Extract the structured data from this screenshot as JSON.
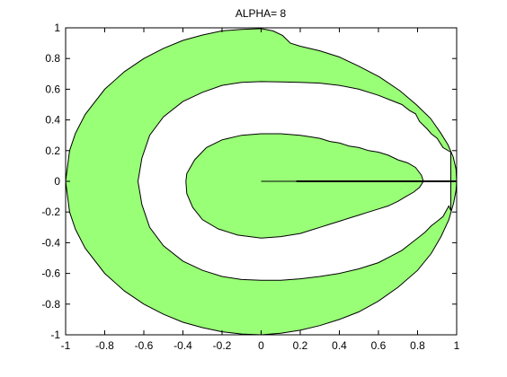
{
  "chart_data": {
    "type": "area",
    "title": "ALPHA= 8",
    "xlabel": "",
    "ylabel": "",
    "xlim": [
      -1,
      1
    ],
    "ylim": [
      -1,
      1
    ],
    "xticks": [
      -1,
      -0.8,
      -0.6,
      -0.4,
      -0.2,
      0,
      0.2,
      0.4,
      0.6,
      0.8,
      1
    ],
    "yticks": [
      -1,
      -0.8,
      -0.6,
      -0.4,
      -0.2,
      0,
      0.2,
      0.4,
      0.6,
      0.8,
      1
    ],
    "xtick_labels": [
      "-1",
      "-0.8",
      "-0.6",
      "-0.4",
      "-0.2",
      "0",
      "0.2",
      "0.4",
      "0.6",
      "0.8",
      "1"
    ],
    "ytick_labels": [
      "-1",
      "-0.8",
      "-0.6",
      "-0.4",
      "-0.2",
      "0",
      "0.2",
      "0.4",
      "0.6",
      "0.8",
      "1"
    ],
    "grid": false,
    "fill_color": "#99ff77",
    "edge_color": "#000000",
    "regions": [
      {
        "name": "",
        "role": "outer-boundary",
        "points": [
          [
            1.0,
            0.0
          ],
          [
            0.997,
            0.08
          ],
          [
            0.982,
            0.16
          ],
          [
            0.955,
            0.24
          ],
          [
            0.916,
            0.32
          ],
          [
            0.866,
            0.41
          ],
          [
            0.793,
            0.5
          ],
          [
            0.71,
            0.59
          ],
          [
            0.605,
            0.68
          ],
          [
            0.5,
            0.75
          ],
          [
            0.4,
            0.81
          ],
          [
            0.3,
            0.85
          ],
          [
            0.2,
            0.88
          ],
          [
            0.15,
            0.9
          ],
          [
            0.11,
            0.95
          ],
          [
            0.06,
            0.98
          ],
          [
            0.0,
            0.995
          ],
          [
            -0.1,
            0.99
          ],
          [
            -0.2,
            0.98
          ],
          [
            -0.3,
            0.953
          ],
          [
            -0.4,
            0.918
          ],
          [
            -0.5,
            0.866
          ],
          [
            -0.6,
            0.8
          ],
          [
            -0.7,
            0.714
          ],
          [
            -0.8,
            0.6
          ],
          [
            -0.9,
            0.436
          ],
          [
            -0.95,
            0.312
          ],
          [
            -0.98,
            0.2
          ],
          [
            -1.0,
            0.0
          ],
          [
            -0.98,
            -0.2
          ],
          [
            -0.95,
            -0.312
          ],
          [
            -0.9,
            -0.436
          ],
          [
            -0.8,
            -0.6
          ],
          [
            -0.7,
            -0.714
          ],
          [
            -0.6,
            -0.8
          ],
          [
            -0.5,
            -0.866
          ],
          [
            -0.4,
            -0.918
          ],
          [
            -0.3,
            -0.953
          ],
          [
            -0.2,
            -0.98
          ],
          [
            -0.1,
            -0.995
          ],
          [
            0.0,
            -1.0
          ],
          [
            0.1,
            -0.99
          ],
          [
            0.2,
            -0.97
          ],
          [
            0.3,
            -0.94
          ],
          [
            0.4,
            -0.9
          ],
          [
            0.5,
            -0.85
          ],
          [
            0.6,
            -0.78
          ],
          [
            0.7,
            -0.69
          ],
          [
            0.8,
            -0.58
          ],
          [
            0.87,
            -0.47
          ],
          [
            0.92,
            -0.36
          ],
          [
            0.96,
            -0.25
          ],
          [
            0.985,
            -0.14
          ],
          [
            0.997,
            -0.06
          ],
          [
            1.0,
            0.0
          ]
        ]
      },
      {
        "name": "",
        "role": "hole",
        "points": [
          [
            0.97,
            0.19
          ],
          [
            0.93,
            0.22
          ],
          [
            0.9,
            0.28
          ],
          [
            0.87,
            0.31
          ],
          [
            0.85,
            0.34
          ],
          [
            0.81,
            0.39
          ],
          [
            0.79,
            0.44
          ],
          [
            0.76,
            0.46
          ],
          [
            0.72,
            0.5
          ],
          [
            0.66,
            0.53
          ],
          [
            0.6,
            0.56
          ],
          [
            0.5,
            0.6
          ],
          [
            0.4,
            0.625
          ],
          [
            0.3,
            0.64
          ],
          [
            0.2,
            0.645
          ],
          [
            0.1,
            0.648
          ],
          [
            0.0,
            0.65
          ],
          [
            -0.1,
            0.645
          ],
          [
            -0.2,
            0.625
          ],
          [
            -0.3,
            0.58
          ],
          [
            -0.4,
            0.52
          ],
          [
            -0.5,
            0.42
          ],
          [
            -0.57,
            0.3
          ],
          [
            -0.61,
            0.15
          ],
          [
            -0.63,
            0.0
          ],
          [
            -0.61,
            -0.15
          ],
          [
            -0.57,
            -0.3
          ],
          [
            -0.5,
            -0.42
          ],
          [
            -0.4,
            -0.52
          ],
          [
            -0.3,
            -0.58
          ],
          [
            -0.2,
            -0.62
          ],
          [
            -0.1,
            -0.64
          ],
          [
            0.0,
            -0.645
          ],
          [
            0.1,
            -0.645
          ],
          [
            0.2,
            -0.635
          ],
          [
            0.3,
            -0.62
          ],
          [
            0.4,
            -0.6
          ],
          [
            0.5,
            -0.57
          ],
          [
            0.6,
            -0.53
          ],
          [
            0.66,
            -0.49
          ],
          [
            0.72,
            -0.45
          ],
          [
            0.77,
            -0.4
          ],
          [
            0.81,
            -0.36
          ],
          [
            0.84,
            -0.33
          ],
          [
            0.87,
            -0.29
          ],
          [
            0.9,
            -0.26
          ],
          [
            0.93,
            -0.23
          ],
          [
            0.96,
            -0.16
          ],
          [
            0.97,
            -0.19
          ]
        ]
      },
      {
        "name": "",
        "role": "inner-filled",
        "points": [
          [
            0.83,
            0.0
          ],
          [
            0.82,
            0.04
          ],
          [
            0.79,
            0.09
          ],
          [
            0.75,
            0.12
          ],
          [
            0.7,
            0.14
          ],
          [
            0.65,
            0.17
          ],
          [
            0.6,
            0.19
          ],
          [
            0.55,
            0.2
          ],
          [
            0.5,
            0.22
          ],
          [
            0.45,
            0.23
          ],
          [
            0.4,
            0.25
          ],
          [
            0.35,
            0.26
          ],
          [
            0.3,
            0.28
          ],
          [
            0.25,
            0.29
          ],
          [
            0.2,
            0.3
          ],
          [
            0.1,
            0.31
          ],
          [
            0.0,
            0.31
          ],
          [
            -0.1,
            0.3
          ],
          [
            -0.2,
            0.27
          ],
          [
            -0.28,
            0.22
          ],
          [
            -0.34,
            0.14
          ],
          [
            -0.38,
            0.05
          ],
          [
            -0.385,
            0.0
          ],
          [
            -0.38,
            -0.08
          ],
          [
            -0.35,
            -0.17
          ],
          [
            -0.3,
            -0.25
          ],
          [
            -0.22,
            -0.31
          ],
          [
            -0.12,
            -0.35
          ],
          [
            0.0,
            -0.37
          ],
          [
            0.1,
            -0.36
          ],
          [
            0.2,
            -0.34
          ],
          [
            0.3,
            -0.3
          ],
          [
            0.35,
            -0.28
          ],
          [
            0.4,
            -0.26
          ],
          [
            0.45,
            -0.24
          ],
          [
            0.5,
            -0.22
          ],
          [
            0.55,
            -0.2
          ],
          [
            0.6,
            -0.18
          ],
          [
            0.65,
            -0.16
          ],
          [
            0.7,
            -0.13
          ],
          [
            0.74,
            -0.1
          ],
          [
            0.78,
            -0.07
          ],
          [
            0.81,
            -0.04
          ],
          [
            0.83,
            0.0
          ]
        ]
      }
    ],
    "segments": [
      {
        "name": "",
        "x": [
          0,
          1
        ],
        "y": [
          0,
          0
        ]
      },
      {
        "name": "",
        "x": [
          0.18,
          1
        ],
        "y": [
          0,
          0
        ],
        "emphasis": "bold"
      }
    ]
  }
}
